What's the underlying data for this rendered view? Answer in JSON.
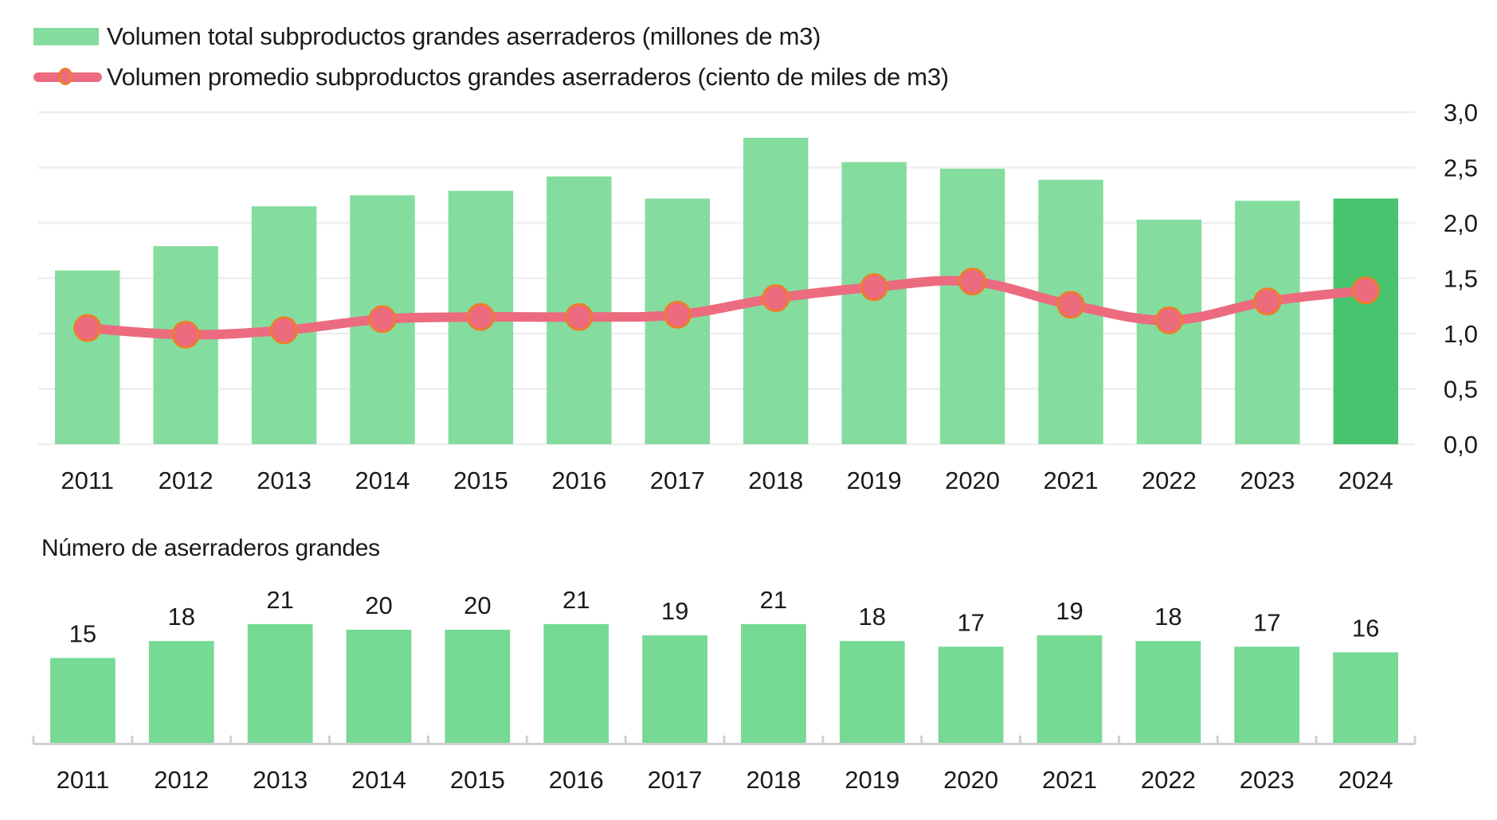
{
  "legend": {
    "bar_label": "Volumen total subproductos grandes aserraderos (millones de m3)",
    "line_label": "Volumen promedio subproductos grandes aserraderos (ciento de miles de m3)"
  },
  "bottom_title": "Número de aserraderos grandes",
  "colors": {
    "bar": "#84dd9f",
    "bar_highlight": "#48c46f",
    "line": "#ec6b7f",
    "marker_edge": "#ee7d2c",
    "bottom_bar": "#76d994",
    "grid": "#eeeeee",
    "axis": "#d0d0d0"
  },
  "chart_data": [
    {
      "type": "bar+line",
      "title": "",
      "categories": [
        "2011",
        "2012",
        "2013",
        "2014",
        "2015",
        "2016",
        "2017",
        "2018",
        "2019",
        "2020",
        "2021",
        "2022",
        "2023",
        "2024"
      ],
      "series": [
        {
          "name": "Volumen total subproductos grandes aserraderos (millones de m3)",
          "type": "bar",
          "values": [
            1.57,
            1.79,
            2.15,
            2.25,
            2.29,
            2.42,
            2.22,
            2.77,
            2.55,
            2.49,
            2.39,
            2.03,
            2.2,
            2.22
          ],
          "highlight_index": 13
        },
        {
          "name": "Volumen promedio subproductos grandes aserraderos (ciento de miles de m3)",
          "type": "line",
          "values": [
            1.05,
            0.99,
            1.03,
            1.13,
            1.15,
            1.15,
            1.17,
            1.32,
            1.42,
            1.47,
            1.26,
            1.12,
            1.29,
            1.39
          ]
        }
      ],
      "y_axis": {
        "position": "right",
        "ylim": [
          0,
          3.0
        ],
        "ticks": [
          "0,0",
          "0,5",
          "1,0",
          "1,5",
          "2,0",
          "2,5",
          "3,0"
        ],
        "tick_values": [
          0,
          0.5,
          1.0,
          1.5,
          2.0,
          2.5,
          3.0
        ]
      },
      "xlabel": "",
      "ylabel": "",
      "grid": true,
      "legend_position": "top-left"
    },
    {
      "type": "bar",
      "title": "Número de aserraderos grandes",
      "categories": [
        "2011",
        "2012",
        "2013",
        "2014",
        "2015",
        "2016",
        "2017",
        "2018",
        "2019",
        "2020",
        "2021",
        "2022",
        "2023",
        "2024"
      ],
      "values": [
        15,
        18,
        21,
        20,
        20,
        21,
        19,
        21,
        18,
        17,
        19,
        18,
        17,
        16
      ],
      "data_labels": true,
      "xlabel": "",
      "ylabel": "",
      "grid": false
    }
  ]
}
